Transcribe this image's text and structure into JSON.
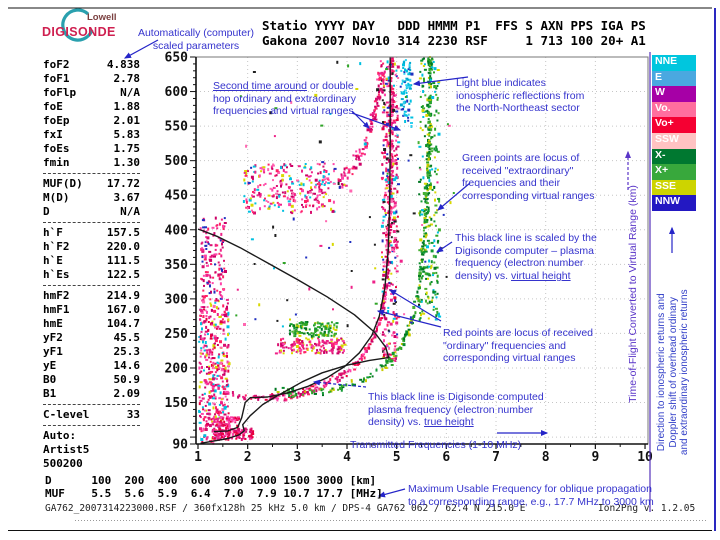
{
  "logo": {
    "lowell": "Lowell",
    "digisonde": "DIGISONDE"
  },
  "header": {
    "text": "Statio YYYY DAY   DDD HMMM P1  FFS S AXN PPS IGA PS\nGakona 2007 Nov10 314 2230 RSF     1 713 100 20+ A1"
  },
  "parameters": {
    "rows": [
      {
        "l": "foF2",
        "v": "4.838"
      },
      {
        "l": "foF1",
        "v": "2.78"
      },
      {
        "l": "foFlp",
        "v": "N/A"
      },
      {
        "l": "foE",
        "v": "1.88"
      },
      {
        "l": "foEp",
        "v": "2.01"
      },
      {
        "l": "fxI",
        "v": "5.83"
      },
      {
        "l": "foEs",
        "v": "1.75"
      },
      {
        "l": "fmin",
        "v": "1.30"
      },
      {
        "hr": true
      },
      {
        "l": "MUF(D)",
        "v": "17.72"
      },
      {
        "l": "M(D)",
        "v": "3.67"
      },
      {
        "l": "D",
        "v": "N/A"
      },
      {
        "hr": true
      },
      {
        "l": "h`F",
        "v": "157.5"
      },
      {
        "l": "h`F2",
        "v": "220.0"
      },
      {
        "l": "h`E",
        "v": "111.5"
      },
      {
        "l": "h`Es",
        "v": "122.5"
      },
      {
        "hr": true
      },
      {
        "l": "hmF2",
        "v": "214.9"
      },
      {
        "l": "hmF1",
        "v": "167.0"
      },
      {
        "l": "hmE",
        "v": "104.7"
      },
      {
        "l": "yF2",
        "v": "45.5"
      },
      {
        "l": "yF1",
        "v": "25.3"
      },
      {
        "l": "yE",
        "v": "14.6"
      },
      {
        "l": "B0",
        "v": "50.9"
      },
      {
        "l": "B1",
        "v": "2.09"
      },
      {
        "hr": true
      },
      {
        "l": "C-level",
        "v": "33"
      },
      {
        "hr": true
      },
      {
        "l": "Auto:",
        "v": ""
      },
      {
        "l": "Artist5",
        "v": ""
      },
      {
        "l": "500200",
        "v": ""
      }
    ]
  },
  "dmuf": {
    "text": "D      100  200  400  600  800 1000 1500 3000 [km]\nMUF    5.5  5.6  5.9  6.4  7.0  7.9 10.7 17.7 [MHz]"
  },
  "status": {
    "left": "GA762_2007314223000.RSF / 360fx128h 25 kHz 5.0 km / DPS-4 GA762 062 / 62.4 N 215.0 E",
    "right": "Ion2Png v. 1.2.05"
  },
  "legend": {
    "items": [
      {
        "label": "NNE",
        "color": "#00c6de"
      },
      {
        "label": "E",
        "color": "#4aa8e0"
      },
      {
        "label": "W",
        "color": "#a600a6"
      },
      {
        "label": "Vo.",
        "color": "#ff6e9e"
      },
      {
        "label": "Vo+",
        "color": "#f50032"
      },
      {
        "label": "SSW",
        "color": "#ffc2c2"
      },
      {
        "label": "X-",
        "color": "#007830"
      },
      {
        "label": "X+",
        "color": "#38a83c"
      },
      {
        "label": "SSE",
        "color": "#cdd400"
      },
      {
        "label": "NNW",
        "color": "#2318c2"
      }
    ]
  },
  "vlabels": {
    "tof": "Time-of-Flight Converted to Virtual Range (km)",
    "direction": "Direction to ionospheric returns and\nDoppler shift of overhead ordinary\nand extraordinary ionospheric returns"
  },
  "annotations": {
    "auto_scaled": {
      "pre": "Automatically (computer)\nscaled parameters"
    },
    "second_time": {
      "pre": "",
      "u": "Second time around",
      "post": " or double\nhop ordinary and extraordinary\nfrequencies and virtual ranges"
    },
    "light_blue": {
      "pre": "Light blue indicates\nionospheric reflections from\nthe  North-Northeast sector"
    },
    "green_points": {
      "pre": "Green points are locus of\nreceived \"extraordinary\"\nfrequencies and their\ncorresponding virtual ranges"
    },
    "black_scaled": {
      "pre": "This black line is scaled by the\nDigisonde computer – plasma\nfrequency (electron number\ndensity) vs. ",
      "u": "virtual height"
    },
    "red_points": {
      "pre": "Red points are locus of received\n\"ordinary\" frequencies and\ncorresponding virtual ranges"
    },
    "black_true": {
      "pre": "This black line is Digisonde computed\nplasma frequency (electron number\ndensity) vs. ",
      "u": "true height"
    },
    "transmitted": {
      "pre": "Transmitted Frequencies (1-10 MHz)"
    },
    "muf_note": {
      "pre": "Maximum Usable Frequency for oblique propagation\nto a corresponding range, e.g., 17.7 MHz to 3000 km"
    }
  },
  "colors": {
    "annotation": "#3533cd",
    "axis": "#111111",
    "grid": "#c6c6c6",
    "tof_label": "#5a35c8",
    "frame_blue": "#2a28c0",
    "legend_rule": "#5533bb"
  },
  "chart_data": {
    "type": "scatter",
    "title": "Digisonde ionogram — Gakona, 2007 Nov10 (day 314) 2230",
    "xlabel": "Transmitted Frequencies (1-10 MHz)",
    "ylabel": "Time-of-Flight Converted to Virtual Range (km)",
    "xlim": [
      1,
      10
    ],
    "ylim": [
      90,
      650
    ],
    "x_ticks": [
      1,
      2,
      3,
      4,
      5,
      6,
      7,
      8,
      9,
      10
    ],
    "y_ticks": [
      650,
      600,
      550,
      500,
      450,
      400,
      350,
      300,
      250,
      200,
      150,
      90
    ],
    "grid": {
      "x_step": 1,
      "y_step": 50
    },
    "clusters": [
      {
        "name": "noise-column-low",
        "kind": "box",
        "f": [
          1.02,
          1.62
        ],
        "km": [
          90,
          300
        ],
        "n": 420,
        "colors": [
          "#ee2288",
          "#ff44aa",
          "#d81070",
          "#ff2266",
          "#cc0066",
          "#ff66b0",
          "#e80040",
          "#ee2288",
          "#d8d800",
          "#00c0e0"
        ]
      },
      {
        "name": "noise-column-high",
        "kind": "box",
        "f": [
          1.05,
          1.55
        ],
        "km": [
          300,
          418
        ],
        "n": 130,
        "colors": [
          "#ee2288",
          "#ff44aa",
          "#d81070",
          "#ff2266",
          "#cc0066",
          "#2030c0"
        ]
      },
      {
        "name": "e-region-trace",
        "kind": "box",
        "f": [
          1.28,
          2.12
        ],
        "km": [
          97,
          113
        ],
        "n": 120,
        "colors": [
          "#ee2288",
          "#e80040",
          "#ff44aa",
          "#d81070"
        ]
      },
      {
        "name": "es-band",
        "kind": "box",
        "f": [
          1.32,
          1.85
        ],
        "km": [
          116,
          129
        ],
        "n": 50,
        "colors": [
          "#ee2288",
          "#ff44aa",
          "#e80040"
        ]
      },
      {
        "name": "ordinary-f-trace",
        "kind": "path",
        "n": 360,
        "jf": 0.05,
        "jkm": 7,
        "points": [
          [
            1.5,
            166
          ],
          [
            1.8,
            160
          ],
          [
            2.1,
            157
          ],
          [
            2.5,
            157
          ],
          [
            2.9,
            161
          ],
          [
            3.3,
            169
          ],
          [
            3.7,
            180
          ],
          [
            4.0,
            193
          ],
          [
            4.3,
            215
          ],
          [
            4.55,
            245
          ],
          [
            4.7,
            280
          ],
          [
            4.8,
            330
          ],
          [
            4.85,
            400
          ],
          [
            4.88,
            480
          ],
          [
            4.9,
            580
          ],
          [
            4.9,
            650
          ]
        ],
        "colors": [
          "#ee2288",
          "#ff44aa",
          "#d81070",
          "#ff2266",
          "#e80040",
          "#cc0066"
        ]
      },
      {
        "name": "ordinary-asymptote-column",
        "kind": "box",
        "f": [
          4.7,
          5.03
        ],
        "km": [
          210,
          648
        ],
        "n": 380,
        "colors": [
          "#ee2288",
          "#ff44aa",
          "#d81070",
          "#ff2266",
          "#cc0066",
          "#ff66b0",
          "#e80040",
          "#ee2288",
          "#00c0e0",
          "#d8d800",
          "#2030c0",
          "#202020"
        ]
      },
      {
        "name": "extraordinary-x-trace",
        "kind": "path",
        "n": 300,
        "jf": 0.05,
        "jkm": 7,
        "points": [
          [
            2.55,
            170
          ],
          [
            2.9,
            164
          ],
          [
            3.3,
            163
          ],
          [
            3.7,
            168
          ],
          [
            4.1,
            177
          ],
          [
            4.5,
            190
          ],
          [
            4.85,
            210
          ],
          [
            5.1,
            235
          ],
          [
            5.3,
            268
          ],
          [
            5.45,
            315
          ],
          [
            5.55,
            380
          ],
          [
            5.62,
            460
          ],
          [
            5.66,
            560
          ],
          [
            5.67,
            650
          ]
        ],
        "colors": [
          "#119933",
          "#2fa426",
          "#007722",
          "#46b033",
          "#0a8c2c",
          "#c8cc00"
        ]
      },
      {
        "name": "extraordinary-asymptote-column",
        "kind": "box",
        "f": [
          5.44,
          5.86
        ],
        "km": [
          270,
          648
        ],
        "n": 240,
        "colors": [
          "#119933",
          "#2fa426",
          "#007722",
          "#46b033",
          "#0a8c2c",
          "#d8d800",
          "#00c0e0"
        ]
      },
      {
        "name": "second-hop-cloud",
        "kind": "box",
        "f": [
          1.9,
          3.75
        ],
        "km": [
          424,
          496
        ],
        "n": 250,
        "colors": [
          "#ee2288",
          "#ff44aa",
          "#d81070",
          "#ff2266",
          "#cc0066",
          "#ff66b0",
          "#00c0e0",
          "#d8d800"
        ]
      },
      {
        "name": "second-hop-rise",
        "kind": "path",
        "n": 120,
        "jf": 0.09,
        "jkm": 16,
        "points": [
          [
            3.8,
            465
          ],
          [
            4.15,
            495
          ],
          [
            4.45,
            540
          ],
          [
            4.65,
            600
          ],
          [
            4.72,
            650
          ]
        ],
        "colors": [
          "#ee2288",
          "#ff44aa",
          "#d81070",
          "#ff2266",
          "#cc0066"
        ]
      },
      {
        "name": "mid-pink-band",
        "kind": "box",
        "f": [
          2.55,
          3.95
        ],
        "km": [
          221,
          243
        ],
        "n": 150,
        "colors": [
          "#ee2288",
          "#ff44aa",
          "#d81070",
          "#ff2266",
          "#cc0066",
          "#d8d800"
        ]
      },
      {
        "name": "mid-green-band",
        "kind": "box",
        "f": [
          2.85,
          3.8
        ],
        "km": [
          246,
          267
        ],
        "n": 110,
        "colors": [
          "#119933",
          "#2fa426",
          "#007722",
          "#46b033",
          "#d8d800"
        ]
      },
      {
        "name": "nne-lightblue-column",
        "kind": "box",
        "f": [
          5.08,
          5.3
        ],
        "km": [
          550,
          648
        ],
        "n": 70,
        "colors": [
          "#00c0e0",
          "#30d0f0",
          "#00a8d0",
          "#2030c0"
        ]
      },
      {
        "name": "sparse-mixed",
        "kind": "box",
        "f": [
          1.7,
          6.2
        ],
        "km": [
          260,
          645
        ],
        "n": 100,
        "colors": [
          "#ee2288",
          "#2fa426",
          "#00c0e0",
          "#d8d800",
          "#2030c0",
          "#ff66b0",
          "#202020"
        ]
      }
    ],
    "lines": [
      {
        "name": "true-height-profile",
        "color": "#1a1a1a",
        "width": 1.4,
        "points": [
          [
            1.05,
            91
          ],
          [
            1.3,
            94
          ],
          [
            1.6,
            98
          ],
          [
            1.82,
            103
          ],
          [
            1.93,
            109
          ],
          [
            1.9,
            118
          ],
          [
            2.05,
            131
          ],
          [
            2.3,
            147
          ],
          [
            2.6,
            160
          ],
          [
            2.78,
            167
          ],
          [
            3.1,
            180
          ],
          [
            3.5,
            193
          ],
          [
            4.0,
            204
          ],
          [
            4.45,
            211
          ],
          [
            4.838,
            215
          ],
          [
            4.78,
            230
          ],
          [
            4.55,
            252
          ],
          [
            4.15,
            277
          ],
          [
            3.6,
            303
          ],
          [
            3.0,
            328
          ],
          [
            2.4,
            352
          ],
          [
            1.85,
            374
          ],
          [
            1.4,
            390
          ],
          [
            1.08,
            399
          ],
          [
            1.0,
            401
          ]
        ]
      },
      {
        "name": "scaled-virtual-height-trace",
        "color": "#1a1a1a",
        "width": 1.4,
        "points": [
          [
            1.32,
            108
          ],
          [
            1.6,
            109
          ],
          [
            1.8,
            114
          ],
          [
            1.88,
            128
          ],
          [
            1.95,
            150
          ],
          [
            2.05,
            157
          ],
          [
            2.4,
            158
          ],
          [
            2.8,
            164
          ],
          [
            3.2,
            173
          ],
          [
            3.6,
            186
          ],
          [
            3.95,
            202
          ],
          [
            4.25,
            222
          ],
          [
            4.5,
            247
          ],
          [
            4.65,
            275
          ],
          [
            4.76,
            315
          ],
          [
            4.83,
            370
          ],
          [
            4.86,
            440
          ],
          [
            4.87,
            530
          ],
          [
            4.87,
            650
          ]
        ]
      }
    ]
  }
}
